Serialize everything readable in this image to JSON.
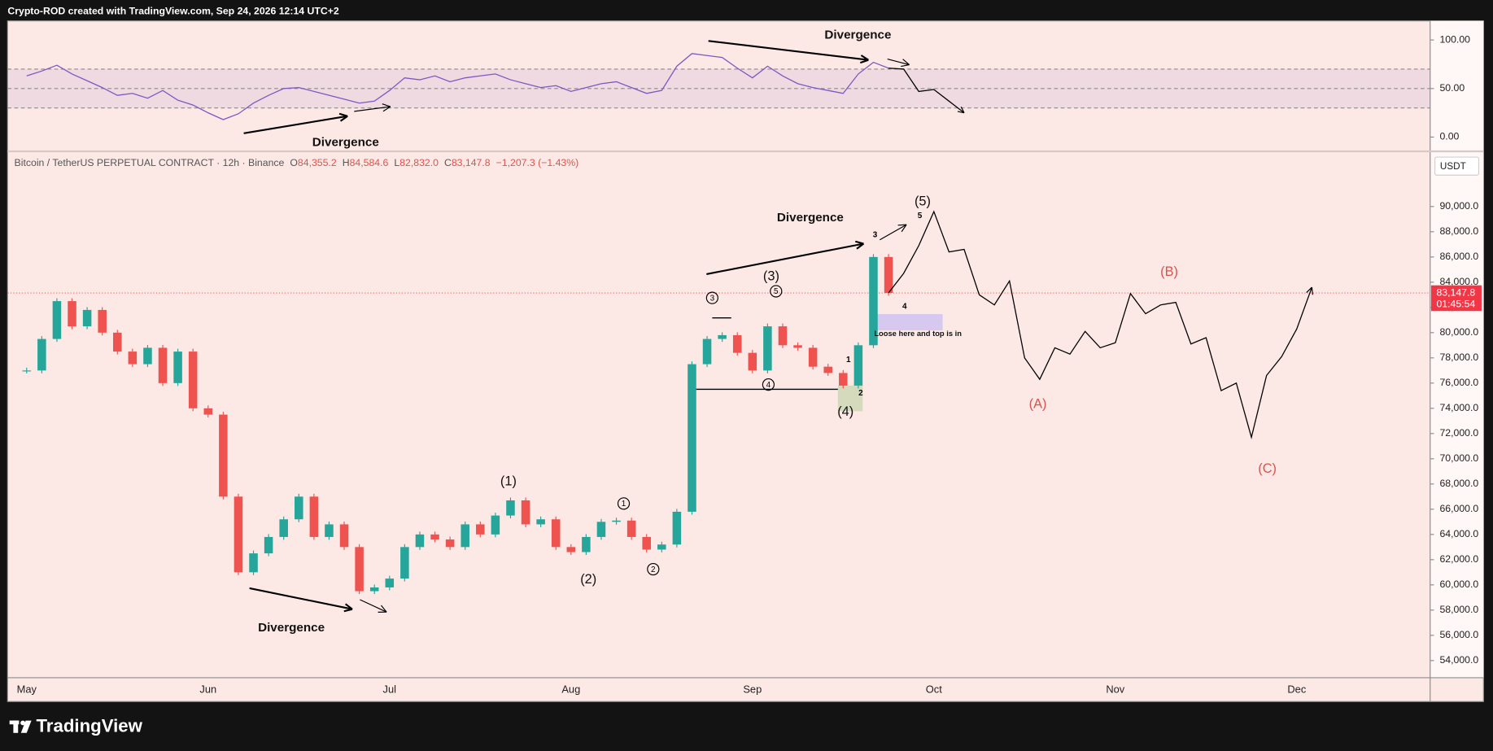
{
  "header": {
    "caption": "Crypto-ROD created with TradingView.com, Sep 24, 2026 12:14 UTC+2",
    "brand": "TradingView"
  },
  "chart_data": [
    {
      "type": "line",
      "series": [
        {
          "color": "#7e57c2",
          "values": [
            63,
            68,
            74,
            65,
            58,
            51,
            43,
            45,
            40,
            48,
            38,
            33,
            25,
            18,
            24,
            35,
            43,
            50,
            51,
            47,
            43,
            39,
            35,
            37,
            48,
            61,
            59,
            63,
            57,
            61,
            63,
            65,
            59,
            55,
            51,
            53,
            47,
            51,
            55,
            57,
            51,
            45,
            48,
            73,
            86,
            84,
            82,
            71,
            61,
            73,
            63,
            55,
            51,
            48,
            45,
            65,
            77,
            71,
            null,
            null,
            null,
            null,
            null,
            null,
            null,
            null,
            null,
            null,
            null,
            null,
            null,
            null,
            null,
            null,
            null,
            null,
            null,
            null,
            null,
            null,
            null,
            null,
            null,
            null,
            null,
            null,
            null,
            null,
            null,
            null,
            null,
            null
          ]
        },
        {
          "color": "#000000",
          "values": [
            null,
            null,
            null,
            null,
            null,
            null,
            null,
            null,
            null,
            null,
            null,
            null,
            null,
            null,
            null,
            null,
            null,
            null,
            null,
            null,
            null,
            null,
            null,
            null,
            null,
            null,
            null,
            null,
            null,
            null,
            null,
            null,
            null,
            null,
            null,
            null,
            null,
            null,
            null,
            null,
            null,
            null,
            null,
            null,
            null,
            null,
            null,
            null,
            null,
            null,
            null,
            null,
            null,
            null,
            null,
            null,
            null,
            71,
            70,
            47,
            49,
            37,
            25,
            null,
            null,
            null,
            null,
            null,
            null,
            null,
            null,
            null,
            null,
            null,
            null,
            null,
            null,
            null,
            null,
            null,
            null,
            null,
            null,
            null,
            null,
            null,
            null,
            null,
            null,
            null
          ]
        }
      ],
      "ylim": [
        -13.7,
        119.6
      ],
      "yticks": [
        {
          "value": 0,
          "label": "0.00"
        },
        {
          "value": 50,
          "label": "50.00"
        },
        {
          "value": 100,
          "label": "100.00"
        }
      ],
      "levels": [
        70,
        50,
        30
      ],
      "band_color": "#7e57c2",
      "annotations": [
        "Divergence",
        "Divergence"
      ]
    },
    {
      "type": "candlestick",
      "symbol": "Bitcoin / TetherUS PERPETUAL CONTRACT · 12h · Binance",
      "ohlc": [
        {
          "key": "O",
          "label": "84,355.2"
        },
        {
          "key": "H",
          "label": "84,584.6"
        },
        {
          "key": "L",
          "label": "82,832.0"
        },
        {
          "key": "C",
          "label": "83,147.8"
        }
      ],
      "change": "−1,207.3 (−1.43%)",
      "currency": "USDT",
      "categories": [
        "May",
        null,
        null,
        null,
        null,
        null,
        null,
        null,
        null,
        null,
        null,
        null,
        "Jun",
        null,
        null,
        null,
        null,
        null,
        null,
        null,
        null,
        null,
        null,
        null,
        "Jul",
        null,
        null,
        null,
        null,
        null,
        null,
        null,
        null,
        null,
        null,
        null,
        "Aug",
        null,
        null,
        null,
        null,
        null,
        null,
        null,
        null,
        null,
        null,
        null,
        "Sep",
        null,
        null,
        null,
        null,
        null,
        null,
        null,
        null,
        null,
        null,
        null,
        "Oct",
        null,
        null,
        null,
        null,
        null,
        null,
        null,
        null,
        null,
        null,
        null,
        "Nov",
        null,
        null,
        null,
        null,
        null,
        null,
        null,
        null,
        null,
        null,
        null,
        "Dec",
        null,
        null,
        null,
        null,
        null,
        null,
        null
      ],
      "series": [
        {
          "up_color": "#26a69a",
          "down_color": "#ef5350",
          "values": [
            77000,
            79500,
            82500,
            80500,
            81800,
            80000,
            78500,
            77500,
            78800,
            76000,
            78500,
            74000,
            73500,
            67000,
            61000,
            62500,
            63800,
            65200,
            67000,
            63800,
            64800,
            63000,
            59500,
            59800,
            60500,
            63000,
            64000,
            63600,
            63000,
            64800,
            64000,
            65500,
            66700,
            64800,
            65200,
            63000,
            62600,
            63800,
            65000,
            65100,
            63800,
            62800,
            63200,
            65800,
            77500,
            79500,
            79800,
            78400,
            77000,
            80500,
            79000,
            78800,
            77300,
            76800,
            75800,
            79000,
            86000,
            83147.8,
            null,
            null,
            null,
            null,
            null,
            null,
            null,
            null,
            null,
            null,
            null,
            null,
            null,
            null,
            null,
            null,
            null,
            null,
            null,
            null,
            null,
            null,
            null,
            null,
            null,
            null,
            null,
            null,
            null,
            null,
            null,
            null,
            null,
            null
          ]
        },
        {
          "color": "#000000",
          "values": [
            null,
            null,
            null,
            null,
            null,
            null,
            null,
            null,
            null,
            null,
            null,
            null,
            null,
            null,
            null,
            null,
            null,
            null,
            null,
            null,
            null,
            null,
            null,
            null,
            null,
            null,
            null,
            null,
            null,
            null,
            null,
            null,
            null,
            null,
            null,
            null,
            null,
            null,
            null,
            null,
            null,
            null,
            null,
            null,
            null,
            null,
            null,
            null,
            null,
            null,
            null,
            null,
            null,
            null,
            null,
            null,
            null,
            83147.8,
            84700,
            86900,
            89600,
            86400,
            86600,
            83000,
            82200,
            84100,
            78000,
            76300,
            78800,
            78300,
            80100,
            78800,
            79200,
            83100,
            81500,
            82200,
            82400,
            79100,
            79600,
            75400,
            76000,
            71700,
            76600,
            78100,
            80300,
            83600,
            null,
            null,
            null,
            null,
            null,
            null
          ]
        }
      ],
      "ylim": [
        52640,
        94300
      ],
      "yticks": [
        {
          "value": 54000,
          "label": "54,000.0"
        },
        {
          "value": 56000,
          "label": "56,000.0"
        },
        {
          "value": 58000,
          "label": "58,000.0"
        },
        {
          "value": 60000,
          "label": "60,000.0"
        },
        {
          "value": 62000,
          "label": "62,000.0"
        },
        {
          "value": 64000,
          "label": "64,000.0"
        },
        {
          "value": 66000,
          "label": "66,000.0"
        },
        {
          "value": 68000,
          "label": "68,000.0"
        },
        {
          "value": 70000,
          "label": "70,000.0"
        },
        {
          "value": 72000,
          "label": "72,000.0"
        },
        {
          "value": 74000,
          "label": "74,000.0"
        },
        {
          "value": 76000,
          "label": "76,000.0"
        },
        {
          "value": 78000,
          "label": "78,000.0"
        },
        {
          "value": 80000,
          "label": "80,000.0"
        },
        {
          "value": 82000,
          "label": "82,000.0"
        },
        {
          "value": 84000,
          "label": "84,000.0"
        },
        {
          "value": 86000,
          "label": "86,000.0"
        },
        {
          "value": 88000,
          "label": "88,000.0"
        },
        {
          "value": 90000,
          "label": "90,000.0"
        }
      ],
      "last_price": {
        "value": 83147.8,
        "label": "83,147.8"
      },
      "countdown": "01:45:54",
      "last_price_color": "#f23645",
      "annotations": [
        "Divergence",
        "Divergence",
        "(1)",
        "(2)",
        "(3)",
        "(4)",
        "(5)",
        "(A)",
        "(B)",
        "(C)",
        "Loose here and top is in"
      ],
      "circled_labels": [
        "1",
        "2",
        "3",
        "4",
        "5"
      ],
      "minor_labels": [
        "1",
        "2",
        "3",
        "4",
        "5"
      ]
    }
  ]
}
